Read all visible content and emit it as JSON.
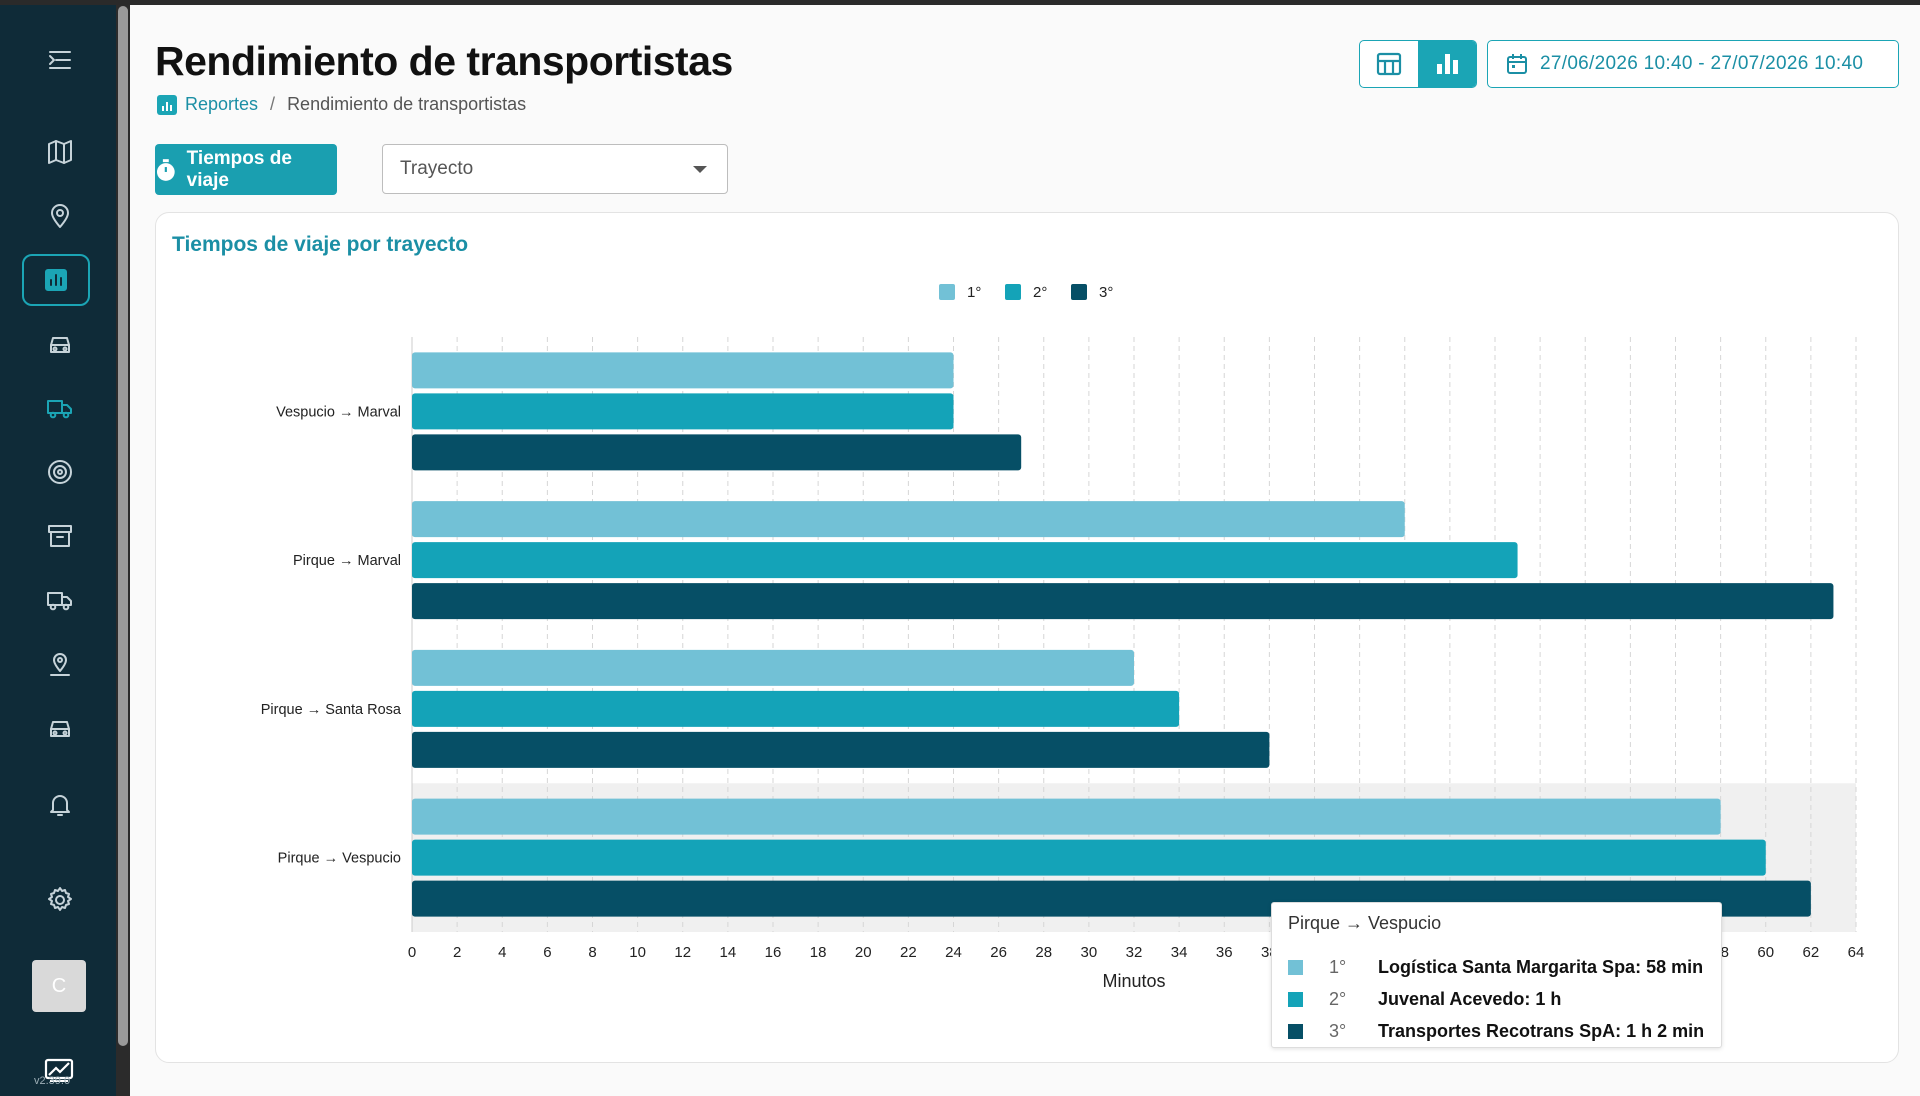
{
  "app": {
    "version": "v2.39.0",
    "avatar_letter": "C",
    "accent": "#1ba5b5"
  },
  "sidebar": {
    "items": [
      {
        "icon": "menu-collapse-icon"
      },
      {
        "icon": "map-icon"
      },
      {
        "icon": "location-pin-icon"
      },
      {
        "icon": "bar-chart-icon",
        "active": true
      },
      {
        "icon": "car-icon"
      },
      {
        "icon": "truck-icon"
      },
      {
        "icon": "target-icon"
      },
      {
        "icon": "archive-icon"
      },
      {
        "icon": "truck-icon"
      },
      {
        "icon": "map-pin-icon"
      },
      {
        "icon": "car-icon"
      },
      {
        "icon": "bell-icon"
      },
      {
        "icon": "gear-icon"
      }
    ]
  },
  "header": {
    "title": "Rendimiento de transportistas",
    "breadcrumb": {
      "root": "Reportes",
      "separator": "/",
      "current": "Rendimiento de transportistas"
    },
    "date_range": "27/06/2026 10:40 - 27/07/2026 10:40"
  },
  "toolbar": {
    "primary_label": "Tiempos de viaje",
    "select_value": "Trayecto"
  },
  "card": {
    "title": "Tiempos de viaje por trayecto"
  },
  "chart_data": {
    "type": "bar",
    "orientation": "horizontal",
    "title": "Tiempos de viaje por trayecto",
    "xlabel": "Minutos",
    "ylabel": "",
    "xlim": [
      0,
      64
    ],
    "xticks": [
      0,
      2,
      4,
      6,
      8,
      10,
      12,
      14,
      16,
      18,
      20,
      22,
      24,
      26,
      28,
      30,
      32,
      34,
      36,
      38,
      40,
      42,
      44,
      46,
      48,
      50,
      52,
      54,
      56,
      58,
      60,
      62,
      64
    ],
    "grid": "vertical dashed",
    "legend_position": "top-center",
    "categories": [
      "Vespucio → Marval",
      "Pirque → Marval",
      "Pirque → Santa Rosa",
      "Pirque → Vespucio"
    ],
    "series": [
      {
        "name": "1°",
        "color": "#72c1d6",
        "values": [
          24,
          44,
          32,
          58
        ]
      },
      {
        "name": "2°",
        "color": "#14a3b8",
        "values": [
          24,
          49,
          34,
          60
        ]
      },
      {
        "name": "3°",
        "color": "#064f66",
        "values": [
          27,
          63,
          38,
          62
        ]
      }
    ],
    "highlighted_category": 3,
    "tooltip": {
      "title": "Pirque → Vespucio",
      "rows": [
        {
          "rank": "1°",
          "text": "Logística Santa Margarita Spa: 58 min"
        },
        {
          "rank": "2°",
          "text": "Juvenal Acevedo: 1 h"
        },
        {
          "rank": "3°",
          "text": "Transportes Recotrans SpA: 1 h 2 min"
        }
      ]
    }
  }
}
